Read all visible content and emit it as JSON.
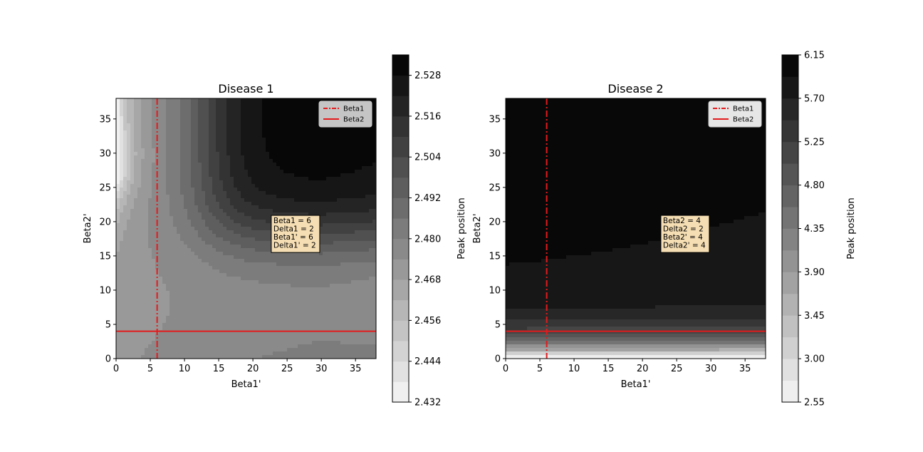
{
  "chart_data": [
    {
      "type": "heatmap",
      "title": "Disease 1",
      "xlabel": "Beta1'",
      "ylabel": "Beta2'",
      "xlim": [
        0,
        38
      ],
      "ylim": [
        0,
        38
      ],
      "xticks": [
        0,
        5,
        10,
        15,
        20,
        25,
        30,
        35
      ],
      "yticks": [
        0,
        5,
        10,
        15,
        20,
        25,
        30,
        35
      ],
      "colorbar": {
        "label": "Peak position",
        "min": 2.432,
        "max": 2.534,
        "ticks": [
          "2.432",
          "2.444",
          "2.456",
          "2.468",
          "2.480",
          "2.492",
          "2.504",
          "2.516",
          "2.528"
        ],
        "levels": 17,
        "colormap": "Greys"
      },
      "vertical_line": {
        "name": "Beta1",
        "x": 6,
        "style": "dash-dot",
        "color": "#e41a1c"
      },
      "horizontal_line": {
        "name": "Beta2",
        "y": 4,
        "style": "solid",
        "color": "#e41a1c"
      },
      "legend": {
        "position": "top-right",
        "entries": [
          "Beta1",
          "Beta2"
        ]
      },
      "annotation": {
        "lines": [
          "Beta1 = 6",
          "Delta1 = 2",
          "Beta1' = 6",
          "Delta1' = 2"
        ],
        "x": 23,
        "y": 15.5
      },
      "grid": false
    },
    {
      "type": "heatmap",
      "title": "Disease 2",
      "xlabel": "Beta1'",
      "ylabel": "Beta2'",
      "xlim": [
        0,
        38
      ],
      "ylim": [
        0,
        38
      ],
      "xticks": [
        0,
        5,
        10,
        15,
        20,
        25,
        30,
        35
      ],
      "yticks": [
        0,
        5,
        10,
        15,
        20,
        25,
        30,
        35
      ],
      "colorbar": {
        "label": "Peak position",
        "min": 2.55,
        "max": 6.15,
        "ticks": [
          "2.55",
          "3.00",
          "3.45",
          "3.90",
          "4.35",
          "4.80",
          "5.25",
          "5.70",
          "6.15"
        ],
        "levels": 16,
        "colormap": "Greys"
      },
      "vertical_line": {
        "name": "Beta1",
        "x": 6,
        "style": "dash-dot",
        "color": "#e41a1c"
      },
      "horizontal_line": {
        "name": "Beta2",
        "y": 4,
        "style": "solid",
        "color": "#e41a1c"
      },
      "legend": {
        "position": "top-right",
        "entries": [
          "Beta1",
          "Beta2"
        ]
      },
      "annotation": {
        "lines": [
          "Beta2 = 4",
          "Delta2 = 2",
          "Beta2' = 4",
          "Delta2' = 4"
        ],
        "x": 23,
        "y": 15.5
      },
      "grid": false
    }
  ]
}
